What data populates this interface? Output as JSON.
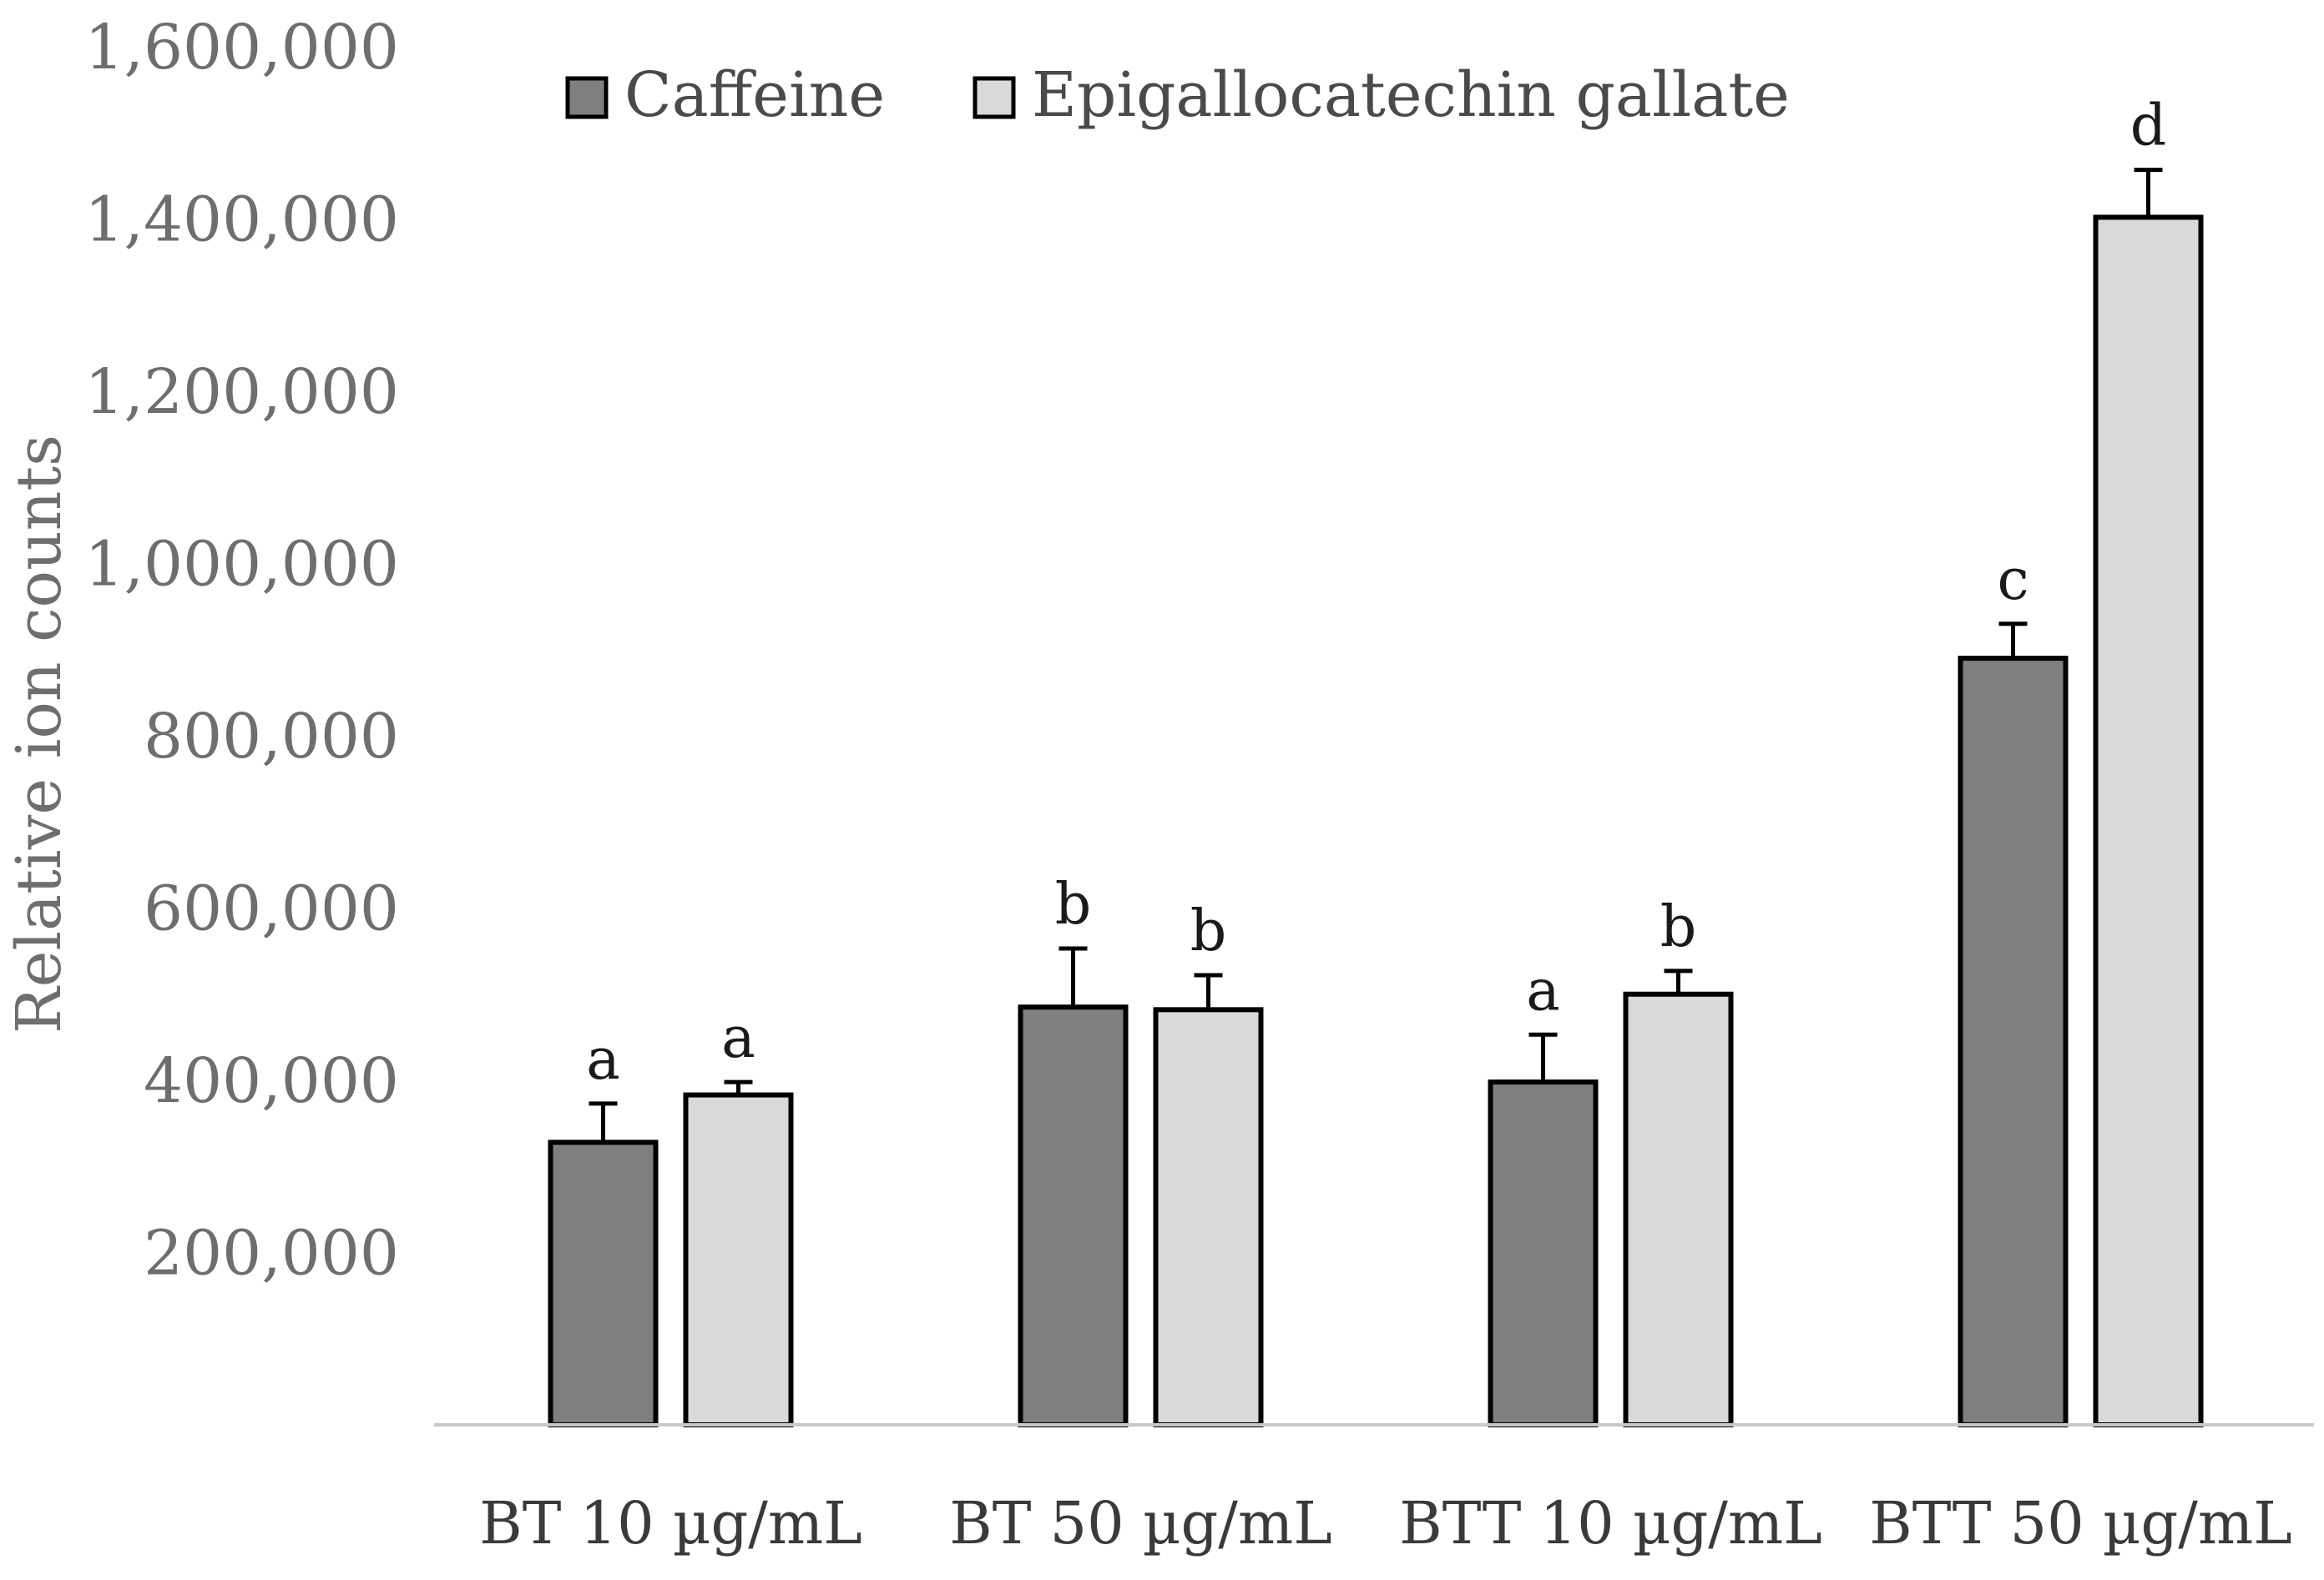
{
  "chart_data": {
    "type": "bar",
    "title": "",
    "xlabel": "",
    "ylabel": "Relative ion counts",
    "ylim": [
      0,
      1600000
    ],
    "yticks": [
      200000,
      400000,
      600000,
      800000,
      1000000,
      1200000,
      1400000,
      1600000
    ],
    "ytick_labels": [
      "200,000",
      "400,000",
      "600,000",
      "800,000",
      "1,000,000",
      "1,200,000",
      "1,400,000",
      "1,600,000"
    ],
    "categories": [
      "BT 10 µg/mL",
      "BT 50 µg/mL",
      "BTT 10 µg/mL",
      "BTT 50 µg/mL"
    ],
    "grid": false,
    "legend_position": "top",
    "series": [
      {
        "name": "Caffeine",
        "color": "#7f7f7f",
        "values": [
          328000,
          485000,
          398000,
          890000
        ],
        "errors": [
          45000,
          68000,
          55000,
          40000
        ],
        "letters": [
          "a",
          "b",
          "a",
          "c"
        ]
      },
      {
        "name": "Epigallocatechin gallate",
        "color": "#d9d9d9",
        "values": [
          383000,
          482000,
          500000,
          1402000
        ],
        "errors": [
          15000,
          40000,
          27000,
          55000
        ],
        "letters": [
          "a",
          "b",
          "b",
          "d"
        ]
      }
    ]
  }
}
